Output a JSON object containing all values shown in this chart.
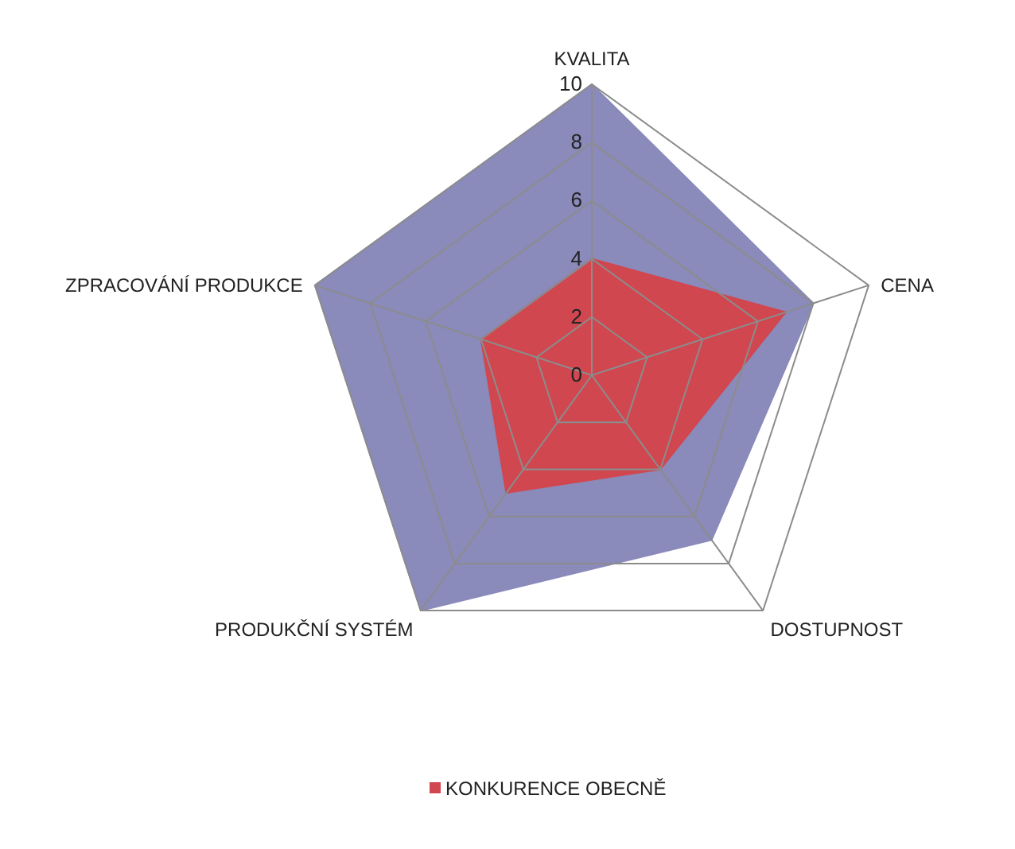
{
  "chart_data": {
    "type": "radar",
    "categories": [
      "KVALITA",
      "CENA",
      "DOSTUPNOST",
      "PRODUKČNÍ SYSTÉM",
      "ZPRACOVÁNÍ PRODUKCE"
    ],
    "series": [
      {
        "color": "#8a8abb",
        "values": [
          10,
          8,
          7,
          10,
          10
        ]
      },
      {
        "name": "KONKURENCE OBECNĚ",
        "color": "#d0474f",
        "values": [
          4,
          7,
          4,
          5,
          4
        ]
      }
    ],
    "ylim": [
      0,
      10
    ],
    "yticks": [
      0,
      2,
      4,
      6,
      8,
      10
    ],
    "grid": true,
    "legend": "bottom"
  }
}
